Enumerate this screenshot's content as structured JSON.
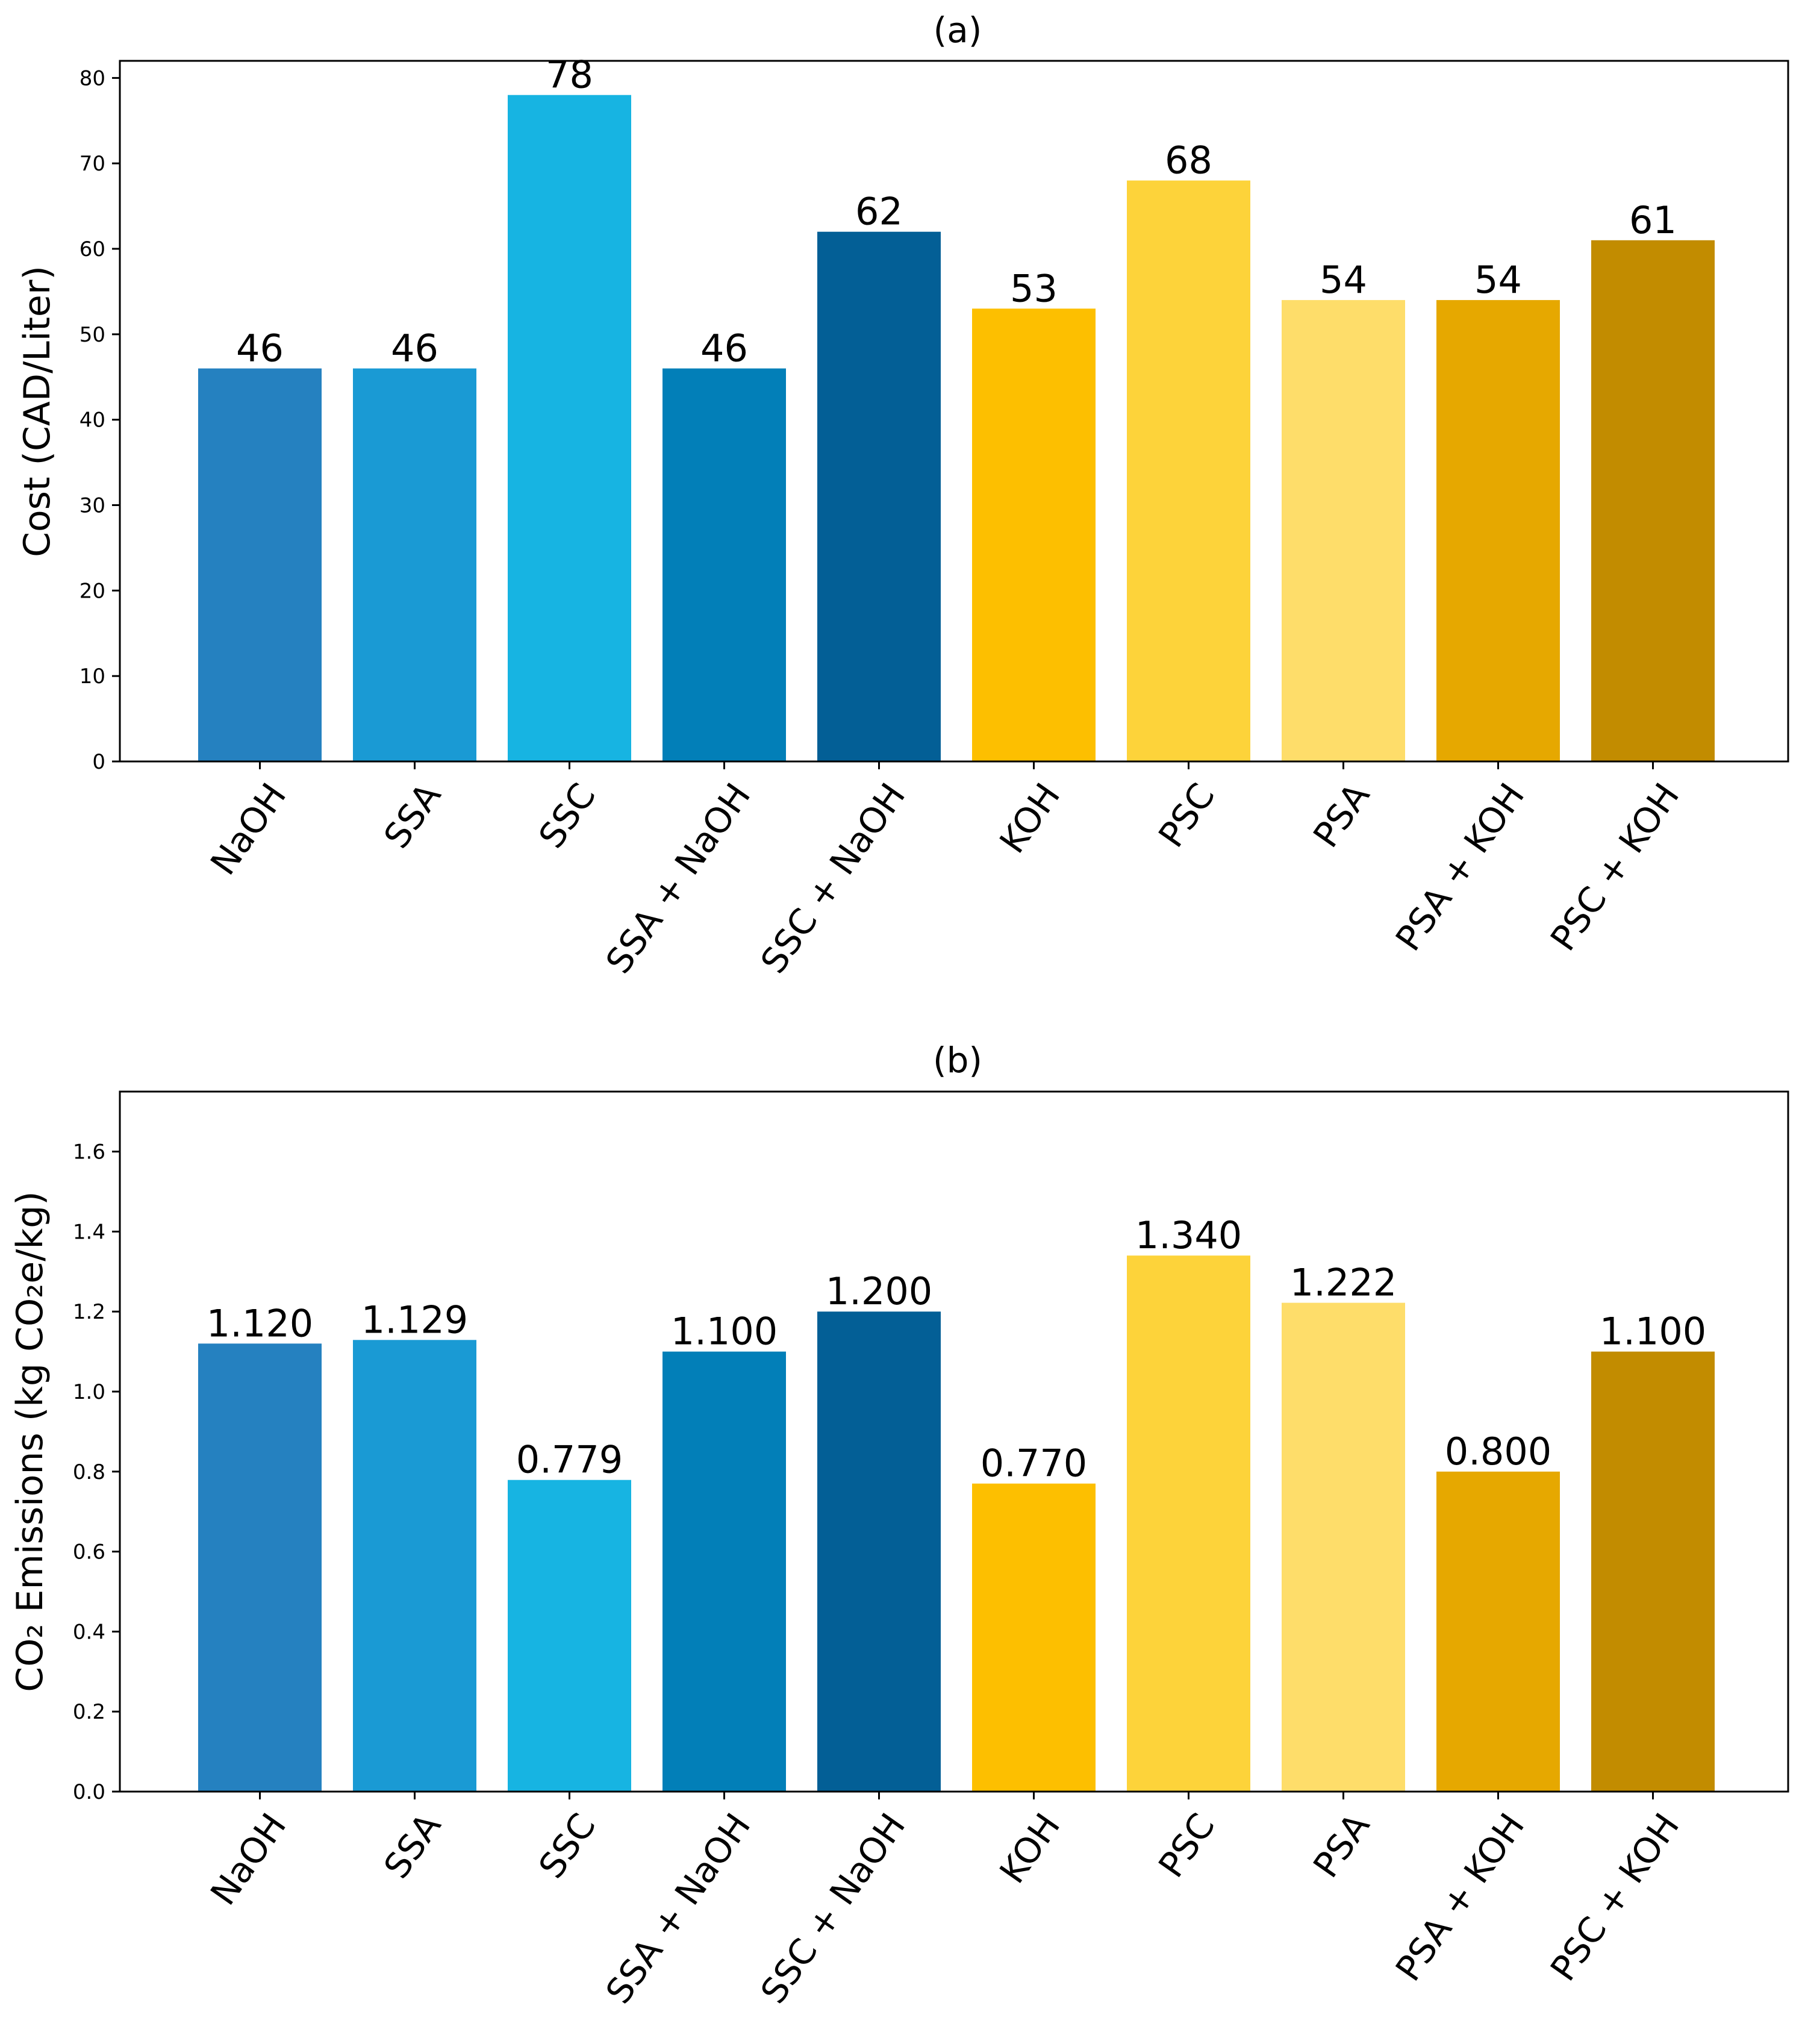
{
  "colors": {
    "bars": [
      "#2581c0",
      "#1a9ad4",
      "#17b4e2",
      "#027fb8",
      "#035f96",
      "#fdbf00",
      "#fdd33a",
      "#fedd6a",
      "#e6a800",
      "#c28c00"
    ]
  },
  "chart_data": [
    {
      "type": "bar",
      "title": "(a)",
      "xlabel": "",
      "ylabel": "Cost (CAD/Liter)",
      "categories": [
        "NaOH",
        "SSA",
        "SSC",
        "SSA + NaOH",
        "SSC + NaOH",
        "KOH",
        "PSC",
        "PSA",
        "PSA + KOH",
        "PSC + KOH"
      ],
      "values": [
        46,
        46,
        78,
        46,
        62,
        53,
        68,
        54,
        54,
        61
      ],
      "data_labels": [
        "46",
        "46",
        "78",
        "46",
        "62",
        "53",
        "68",
        "54",
        "54",
        "61"
      ],
      "ylim": [
        0,
        82
      ],
      "yticks": [
        0,
        10,
        20,
        30,
        40,
        50,
        60,
        70,
        80
      ],
      "ytick_labels": [
        "0",
        "10",
        "20",
        "30",
        "40",
        "50",
        "60",
        "70",
        "80"
      ],
      "grid": false
    },
    {
      "type": "bar",
      "title": "(b)",
      "xlabel": "",
      "ylabel": "CO₂ Emissions (kg CO₂e/kg)",
      "categories": [
        "NaOH",
        "SSA",
        "SSC",
        "SSA + NaOH",
        "SSC + NaOH",
        "KOH",
        "PSC",
        "PSA",
        "PSA + KOH",
        "PSC + KOH"
      ],
      "values": [
        1.12,
        1.129,
        0.779,
        1.1,
        1.2,
        0.77,
        1.34,
        1.222,
        0.8,
        1.1
      ],
      "data_labels": [
        "1.120",
        "1.129",
        "0.779",
        "1.100",
        "1.200",
        "0.770",
        "1.340",
        "1.222",
        "0.800",
        "1.100"
      ],
      "ylim": [
        0,
        1.75
      ],
      "yticks": [
        0,
        0.2,
        0.4,
        0.6,
        0.8,
        1.0,
        1.2,
        1.4,
        1.6
      ],
      "ytick_labels": [
        "0.0",
        "0.2",
        "0.4",
        "0.6",
        "0.8",
        "1.0",
        "1.2",
        "1.4",
        "1.6"
      ],
      "grid": false
    }
  ]
}
